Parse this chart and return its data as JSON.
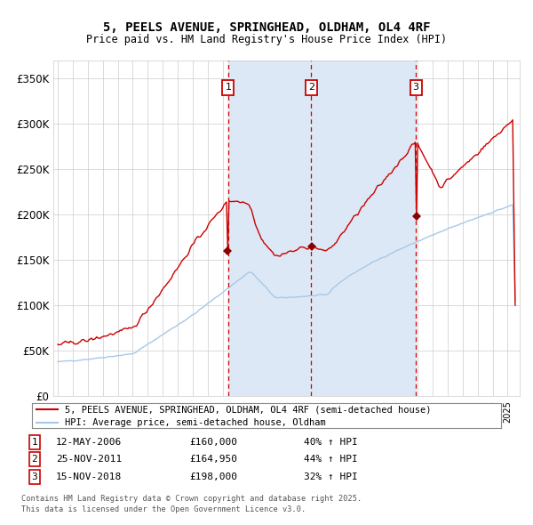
{
  "title": "5, PEELS AVENUE, SPRINGHEAD, OLDHAM, OL4 4RF",
  "subtitle": "Price paid vs. HM Land Registry's House Price Index (HPI)",
  "ylabel_ticks": [
    "£0",
    "£50K",
    "£100K",
    "£150K",
    "£200K",
    "£250K",
    "£300K",
    "£350K"
  ],
  "ytick_vals": [
    0,
    50000,
    100000,
    150000,
    200000,
    250000,
    300000,
    350000
  ],
  "ylim": [
    0,
    370000
  ],
  "xlim_start": 1994.7,
  "xlim_end": 2025.8,
  "hpi_color": "#a8c8e8",
  "price_color": "#cc0000",
  "sale_marker_color": "#8b0000",
  "vline_color": "#cc0000",
  "shade_color": "#dce8f5",
  "grid_color": "#cccccc",
  "legend_line1": "5, PEELS AVENUE, SPRINGHEAD, OLDHAM, OL4 4RF (semi-detached house)",
  "legend_line2": "HPI: Average price, semi-detached house, Oldham",
  "sale1_date": 2006.36,
  "sale1_price": 160000,
  "sale2_date": 2011.9,
  "sale2_price": 164950,
  "sale3_date": 2018.88,
  "sale3_price": 198000,
  "sale1_display": "12-MAY-2006",
  "sale1_paid": "£160,000",
  "sale1_hpi": "40% ↑ HPI",
  "sale2_display": "25-NOV-2011",
  "sale2_paid": "£164,950",
  "sale2_hpi": "44% ↑ HPI",
  "sale3_display": "15-NOV-2018",
  "sale3_paid": "£198,000",
  "sale3_hpi": "32% ↑ HPI",
  "footnote1": "Contains HM Land Registry data © Crown copyright and database right 2025.",
  "footnote2": "This data is licensed under the Open Government Licence v3.0."
}
